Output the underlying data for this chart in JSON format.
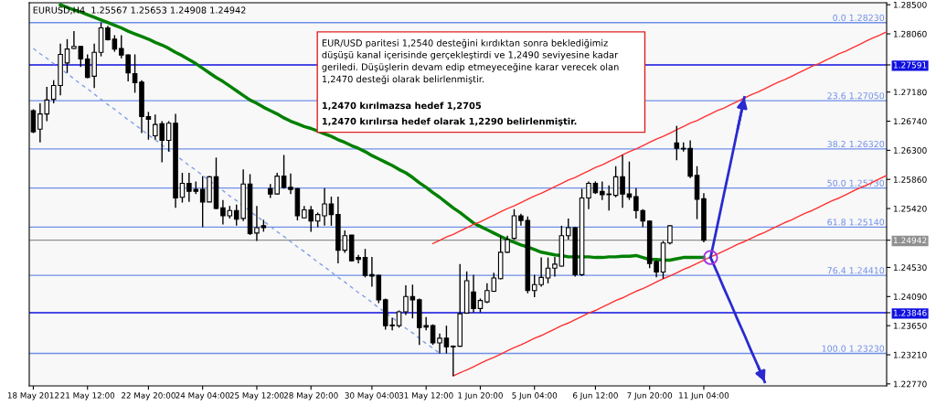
{
  "chart_data": {
    "type": "candlestick",
    "title": "EURUSD,H4  1.25567 1.25653 1.24908 1.24942",
    "annotations": [
      "EUR/USD paritesi 1,2540 desteğini kırdıktan sonra beklediğimiz\ndüşüşü kanal içerisinde gerçekleştirdi ve 1,2490 seviyesine kadar\ngeriledi. Düşüşlerin devam edip etmeyeceğine karar verecek olan\n1,2470 desteği olarak belirlenmiştir.",
      "1,2470 kırılmazsa hedef 1,2705",
      "1,2470 kırılırsa hedef olarak 1,2290 belirlenmiştir."
    ],
    "categories": [
      "18 May 2012",
      null,
      null,
      null,
      null,
      null,
      null,
      null,
      "21 May 12:00",
      null,
      null,
      null,
      null,
      null,
      null,
      null,
      null,
      "22 May 20:00",
      null,
      null,
      null,
      null,
      null,
      null,
      null,
      "24 May 04:00",
      null,
      null,
      null,
      null,
      null,
      null,
      null,
      "25 May 12:00",
      null,
      null,
      null,
      null,
      null,
      null,
      null,
      "28 May 20:00",
      null,
      null,
      null,
      null,
      null,
      null,
      null,
      null,
      "30 May 04:00",
      null,
      null,
      null,
      null,
      null,
      null,
      null,
      "31 May 12:00",
      null,
      null,
      null,
      null,
      null,
      null,
      null,
      "1 Jun 20:00",
      null,
      null,
      null,
      null,
      null,
      null,
      null,
      "5 Jun 04:00",
      null,
      null,
      null,
      null,
      null,
      null,
      null,
      null,
      "6 Jun 12:00",
      null,
      null,
      null,
      null,
      null,
      null,
      null,
      "7 Jun 20:00",
      null,
      null,
      null,
      null,
      null,
      null,
      null,
      "11 Jun 04:00",
      null,
      null,
      null,
      null,
      null,
      null,
      null,
      null,
      null,
      null,
      null,
      null,
      null,
      null,
      null,
      null,
      null,
      null,
      null,
      null,
      null,
      null,
      null,
      null,
      null,
      null,
      null
    ],
    "ohlc": [
      [
        1.269,
        1.2692,
        1.2656,
        1.2658
      ],
      [
        1.2662,
        1.2701,
        1.2642,
        1.2685
      ],
      [
        1.2685,
        1.2726,
        1.2674,
        1.2706
      ],
      [
        1.2707,
        1.2736,
        1.2701,
        1.2728
      ],
      [
        1.2728,
        1.2791,
        1.2713,
        1.2775
      ],
      [
        1.2762,
        1.2798,
        1.2747,
        1.2783
      ],
      [
        1.2784,
        1.281,
        1.2783,
        1.2787
      ],
      [
        1.2787,
        1.2788,
        1.2756,
        1.2768
      ],
      [
        1.2768,
        1.2775,
        1.2739,
        1.274
      ],
      [
        1.2742,
        1.2791,
        1.2724,
        1.2778
      ],
      [
        1.2778,
        1.2823,
        1.2772,
        1.2815
      ],
      [
        1.2815,
        1.2818,
        1.2796,
        1.2797
      ],
      [
        1.2798,
        1.2804,
        1.2779,
        1.2783
      ],
      [
        1.2784,
        1.2804,
        1.2769,
        1.2774
      ],
      [
        1.2774,
        1.2775,
        1.2734,
        1.2747
      ],
      [
        1.2746,
        1.2775,
        1.2717,
        1.2732
      ],
      [
        1.2733,
        1.2736,
        1.2656,
        1.2681
      ],
      [
        1.2681,
        1.2688,
        1.2646,
        1.2677
      ],
      [
        1.2652,
        1.2684,
        1.2646,
        1.2669
      ],
      [
        1.267,
        1.2674,
        1.2612,
        1.2645
      ],
      [
        1.2645,
        1.2674,
        1.2628,
        1.2671
      ],
      [
        1.2671,
        1.2685,
        1.2543,
        1.2558
      ],
      [
        1.2559,
        1.2596,
        1.2551,
        1.258
      ],
      [
        1.258,
        1.2596,
        1.2552,
        1.2568
      ],
      [
        1.2571,
        1.2583,
        1.2564,
        1.2568
      ],
      [
        1.2571,
        1.2591,
        1.2514,
        1.2552
      ],
      [
        1.2552,
        1.2591,
        1.2552,
        1.259
      ],
      [
        1.259,
        1.2619,
        1.2541,
        1.2542
      ],
      [
        1.2543,
        1.2555,
        1.2518,
        1.2531
      ],
      [
        1.2531,
        1.2546,
        1.2527,
        1.2539
      ],
      [
        1.2539,
        1.2548,
        1.2516,
        1.2526
      ],
      [
        1.2527,
        1.2601,
        1.2523,
        1.2579
      ],
      [
        1.2579,
        1.2594,
        1.2502,
        1.2504
      ],
      [
        1.2505,
        1.2546,
        1.2493,
        1.2513
      ],
      [
        1.2516,
        1.2525,
        1.2507,
        1.2513
      ],
      [
        1.2572,
        1.2579,
        1.2558,
        1.2564
      ],
      [
        1.2564,
        1.2596,
        1.2563,
        1.2591
      ],
      [
        1.2591,
        1.2623,
        1.2572,
        1.2574
      ],
      [
        1.2574,
        1.2595,
        1.2564,
        1.2571
      ],
      [
        1.2572,
        1.2573,
        1.2524,
        1.2531
      ],
      [
        1.2528,
        1.2546,
        1.2527,
        1.254
      ],
      [
        1.254,
        1.2546,
        1.2507,
        1.2523
      ],
      [
        1.2523,
        1.2536,
        1.2514,
        1.2533
      ],
      [
        1.2531,
        1.2573,
        1.2516,
        1.2549
      ],
      [
        1.2549,
        1.256,
        1.2516,
        1.2533
      ],
      [
        1.2533,
        1.256,
        1.2459,
        1.2479
      ],
      [
        1.2479,
        1.2509,
        1.2475,
        1.2501
      ],
      [
        1.2502,
        1.2502,
        1.2462,
        1.2463
      ],
      [
        1.2468,
        1.2472,
        1.2459,
        1.2465
      ],
      [
        1.2468,
        1.2481,
        1.2438,
        1.2441
      ],
      [
        1.2442,
        1.2469,
        1.2424,
        1.244
      ],
      [
        1.2441,
        1.2442,
        1.2399,
        1.2404
      ],
      [
        1.2404,
        1.2406,
        1.2359,
        1.2365
      ],
      [
        1.2366,
        1.2377,
        1.2358,
        1.2365
      ],
      [
        1.2365,
        1.2388,
        1.2362,
        1.2386
      ],
      [
        1.2386,
        1.2426,
        1.2381,
        1.2409
      ],
      [
        1.2409,
        1.2427,
        1.2376,
        1.2404
      ],
      [
        1.2404,
        1.2406,
        1.2336,
        1.2362
      ],
      [
        1.2365,
        1.2378,
        1.2358,
        1.2363
      ],
      [
        1.2365,
        1.2367,
        1.2336,
        1.2339
      ],
      [
        1.2339,
        1.2353,
        1.2323,
        1.2346
      ],
      [
        1.2346,
        1.2365,
        1.2323,
        1.2333
      ],
      [
        1.2334,
        1.2335,
        1.2289,
        1.2333
      ],
      [
        1.2334,
        1.2458,
        1.2333,
        1.2383
      ],
      [
        1.2384,
        1.2447,
        1.2383,
        1.2433
      ],
      [
        1.2416,
        1.2442,
        1.2385,
        1.2391
      ],
      [
        1.2391,
        1.2406,
        1.2385,
        1.2403
      ],
      [
        1.2401,
        1.2429,
        1.2399,
        1.2418
      ],
      [
        1.2417,
        1.2445,
        1.2416,
        1.2437
      ],
      [
        1.2436,
        1.25,
        1.2435,
        1.2476
      ],
      [
        1.2476,
        1.2501,
        1.2475,
        1.2495
      ],
      [
        1.2497,
        1.2541,
        1.2495,
        1.2531
      ],
      [
        1.2531,
        1.2534,
        1.2516,
        1.2524
      ],
      [
        1.2524,
        1.253,
        1.2414,
        1.2418
      ],
      [
        1.2418,
        1.2442,
        1.2408,
        1.2427
      ],
      [
        1.2427,
        1.2468,
        1.2424,
        1.2438
      ],
      [
        1.2437,
        1.2468,
        1.2429,
        1.2452
      ],
      [
        1.2452,
        1.2469,
        1.2439,
        1.2458
      ],
      [
        1.2455,
        1.2516,
        1.2454,
        1.2501
      ],
      [
        1.2501,
        1.2527,
        1.2495,
        1.2513
      ],
      [
        1.2513,
        1.2514,
        1.2439,
        1.2442
      ],
      [
        1.2442,
        1.2572,
        1.244,
        1.2558
      ],
      [
        1.2558,
        1.2583,
        1.2541,
        1.258
      ],
      [
        1.258,
        1.2583,
        1.2564,
        1.2566
      ],
      [
        1.2568,
        1.2583,
        1.2555,
        1.2563
      ],
      [
        1.2564,
        1.2577,
        1.2539,
        1.2563
      ],
      [
        1.2562,
        1.2606,
        1.2559,
        1.259
      ],
      [
        1.259,
        1.2623,
        1.2543,
        1.2564
      ],
      [
        1.2564,
        1.2613,
        1.2555,
        1.2559
      ],
      [
        1.256,
        1.2573,
        1.2527,
        1.2539
      ],
      [
        1.2539,
        1.2541,
        1.2514,
        1.2523
      ],
      [
        1.2523,
        1.2524,
        1.2452,
        1.2459
      ],
      [
        1.2462,
        1.2464,
        1.2438,
        1.2446
      ],
      [
        1.2446,
        1.2493,
        1.2436,
        1.249
      ],
      [
        1.249,
        1.2517,
        1.2488,
        1.2516
      ],
      [
        1.2641,
        1.2667,
        1.2615,
        1.2633
      ],
      [
        1.2633,
        1.2642,
        1.2628,
        1.2632
      ],
      [
        1.2633,
        1.2645,
        1.2588,
        1.2591
      ],
      [
        1.2592,
        1.2606,
        1.2526,
        1.2556
      ],
      [
        1.25567,
        1.25653,
        1.24908,
        1.24942
      ],
      null,
      null,
      null,
      null,
      null,
      null,
      null,
      null,
      null,
      null,
      null,
      null,
      null,
      null,
      null,
      null,
      null,
      null,
      null,
      null,
      null,
      null,
      null,
      null,
      null,
      null,
      null
    ],
    "series": [
      {
        "type": "line",
        "color": "#008000",
        "values": [
          null,
          null,
          null,
          null,
          1.285,
          1.2846,
          1.2842,
          1.2839,
          1.2835,
          1.2831,
          1.2827,
          1.2823,
          1.2819,
          1.2815,
          1.281,
          1.2806,
          1.2802,
          1.2798,
          1.2793,
          1.2789,
          1.2784,
          1.2778,
          1.2773,
          1.2767,
          1.2761,
          1.2754,
          1.2747,
          1.274,
          1.2734,
          1.2727,
          1.272,
          1.2713,
          1.2706,
          1.2701,
          1.2695,
          1.269,
          1.2685,
          1.2679,
          1.2674,
          1.267,
          1.2666,
          1.2663,
          1.2659,
          1.2655,
          1.2651,
          1.2646,
          1.2642,
          1.2637,
          1.2633,
          1.2628,
          1.2622,
          1.2617,
          1.2612,
          1.2607,
          1.2601,
          1.2596,
          1.2589,
          1.2581,
          1.2574,
          1.2566,
          1.2559,
          1.2551,
          1.2543,
          1.2536,
          1.2528,
          1.252,
          1.2515,
          1.251,
          1.2505,
          1.25,
          1.2495,
          1.2491,
          1.2487,
          1.2484,
          1.248,
          1.2476,
          1.2474,
          1.2472,
          1.2471,
          1.2469,
          1.2469,
          1.2469,
          1.2469,
          1.2468,
          1.2468,
          1.2469,
          1.2469,
          1.247,
          1.247,
          1.2471,
          1.2468,
          1.2465,
          1.2465,
          1.2464,
          1.2464,
          1.2466,
          1.2468,
          1.2468,
          1.2468,
          1.2468,
          null,
          null,
          null,
          null,
          null,
          null,
          null,
          null,
          null,
          null,
          null,
          null,
          null,
          null,
          null,
          null,
          null,
          null,
          null,
          null,
          null,
          null,
          null,
          null,
          null,
          null,
          null
        ]
      },
      {
        "type": "line",
        "color": "#ff3030",
        "values": [
          null,
          null,
          null,
          null,
          null,
          null,
          null,
          null,
          null,
          null,
          null,
          null,
          null,
          null,
          null,
          null,
          null,
          null,
          null,
          null,
          null,
          null,
          null,
          null,
          null,
          null,
          null,
          null,
          null,
          null,
          null,
          null,
          null,
          null,
          null,
          null,
          null,
          null,
          null,
          null,
          null,
          null,
          null,
          null,
          null,
          null,
          null,
          null,
          null,
          null,
          null,
          null,
          null,
          null,
          null,
          null,
          null,
          null,
          null,
          1.2489,
          1.2494,
          1.2499,
          1.2503,
          1.2508,
          1.2513,
          1.2518,
          1.2522,
          1.2527,
          1.2532,
          1.2537,
          1.2542,
          1.2546,
          1.2551,
          1.2556,
          1.2561,
          1.2565,
          1.257,
          1.2575,
          1.258,
          1.2585,
          1.2589,
          1.2594,
          1.2599,
          1.2604,
          1.2608,
          1.2613,
          1.2618,
          1.2623,
          1.2628,
          1.2632,
          1.2637,
          1.2642,
          1.2647,
          1.2651,
          1.2656,
          1.2661,
          1.2666,
          1.2671,
          1.2675,
          1.268,
          1.2685,
          1.269,
          1.2694,
          1.2699,
          1.2704,
          1.2709,
          1.2714,
          1.2718,
          1.2723,
          1.2728,
          1.2733,
          1.2737,
          1.2742,
          1.2747,
          1.2752,
          1.2757,
          1.2761,
          1.2766,
          1.2771,
          1.2776,
          1.278,
          1.2785,
          1.279,
          1.2795,
          1.28,
          1.2804,
          1.2809
        ]
      },
      {
        "type": "line",
        "color": "#ff3030",
        "values": [
          null,
          null,
          null,
          null,
          null,
          null,
          null,
          null,
          null,
          null,
          null,
          null,
          null,
          null,
          null,
          null,
          null,
          null,
          null,
          null,
          null,
          null,
          null,
          null,
          null,
          null,
          null,
          null,
          null,
          null,
          null,
          null,
          null,
          null,
          null,
          null,
          null,
          null,
          null,
          null,
          null,
          null,
          null,
          null,
          null,
          null,
          null,
          null,
          null,
          null,
          null,
          null,
          null,
          null,
          null,
          null,
          null,
          null,
          null,
          null,
          null,
          null,
          1.2289,
          1.2294,
          1.2298,
          1.2303,
          1.2308,
          1.2313,
          1.2317,
          1.2322,
          1.2327,
          1.2332,
          1.2336,
          1.2341,
          1.2346,
          1.235,
          1.2355,
          1.236,
          1.2365,
          1.2369,
          1.2374,
          1.2379,
          1.2384,
          1.2388,
          1.2393,
          1.2398,
          1.2403,
          1.2407,
          1.2412,
          1.2417,
          1.2421,
          1.2426,
          1.2431,
          1.2436,
          1.244,
          1.2445,
          1.245,
          1.2454,
          1.2459,
          1.2464,
          1.2469,
          1.2473,
          1.2478,
          1.2483,
          1.2488,
          1.2492,
          1.2497,
          1.2502,
          1.2506,
          1.2511,
          1.2516,
          1.2521,
          1.2525,
          1.253,
          1.2535,
          1.2539,
          1.2544,
          1.2549,
          1.2554,
          1.2558,
          1.2563,
          1.2568,
          1.2573,
          1.2577,
          1.2582,
          1.2587,
          1.2592
        ]
      },
      {
        "type": "line",
        "color": "#7f9fe8",
        "line_style": "dashed",
        "values": [
          1.2784,
          1.2776,
          1.2769,
          1.2761,
          1.2753,
          1.2746,
          1.2738,
          1.273,
          1.2723,
          1.2715,
          1.2707,
          1.2699,
          1.2692,
          1.2684,
          1.2676,
          1.2669,
          1.2661,
          1.2653,
          1.2646,
          1.2638,
          1.263,
          1.2623,
          1.2615,
          1.2607,
          1.26,
          1.2592,
          1.2584,
          1.2577,
          1.2569,
          1.2561,
          1.2554,
          1.2546,
          1.2538,
          1.253,
          1.2523,
          1.2515,
          1.2507,
          1.25,
          1.2492,
          1.2484,
          1.2477,
          1.2469,
          1.2461,
          1.2454,
          1.2446,
          1.2438,
          1.2431,
          1.2423,
          1.2415,
          1.2408,
          1.24,
          1.2392,
          1.2385,
          1.2377,
          1.2369,
          1.2361,
          1.2354,
          1.2346,
          1.2338,
          1.2331,
          1.2323,
          null,
          null,
          null,
          null,
          null,
          null,
          null,
          null,
          null,
          null,
          null,
          null,
          null,
          null,
          null,
          null,
          null,
          null,
          null,
          null,
          null,
          null,
          null,
          null,
          null,
          null,
          null,
          null,
          null,
          null,
          null,
          null,
          null,
          null,
          null,
          null,
          null,
          null,
          null,
          null,
          null,
          null,
          null,
          null,
          null,
          null,
          null,
          null,
          null,
          null,
          null,
          null,
          null,
          null,
          null,
          null,
          null,
          null,
          null,
          null,
          null,
          null,
          null,
          null,
          null,
          null
        ]
      },
      {
        "type": "line",
        "color": "#2a2ad0",
        "values": [
          null,
          null,
          null,
          null,
          null,
          null,
          null,
          null,
          null,
          null,
          null,
          null,
          null,
          null,
          null,
          null,
          null,
          null,
          null,
          null,
          null,
          null,
          null,
          null,
          null,
          null,
          null,
          null,
          null,
          null,
          null,
          null,
          null,
          null,
          null,
          null,
          null,
          null,
          null,
          null,
          null,
          null,
          null,
          null,
          null,
          null,
          null,
          null,
          null,
          null,
          null,
          null,
          null,
          null,
          null,
          null,
          null,
          null,
          null,
          null,
          null,
          null,
          null,
          null,
          null,
          null,
          null,
          null,
          null,
          null,
          null,
          null,
          null,
          null,
          null,
          null,
          null,
          null,
          null,
          null,
          null,
          null,
          null,
          null,
          null,
          null,
          null,
          null,
          null,
          null,
          null,
          null,
          null,
          null,
          null,
          null,
          null,
          null,
          null,
          null,
          1.2468,
          1.2516,
          1.2565,
          1.2613,
          1.2662,
          1.271,
          null,
          null,
          null,
          null,
          null,
          null,
          null,
          null,
          null,
          null,
          null,
          null,
          null,
          null,
          null,
          null,
          null,
          null,
          null,
          null,
          null
        ]
      },
      {
        "type": "line",
        "color": "#2a2ad0",
        "values": [
          null,
          null,
          null,
          null,
          null,
          null,
          null,
          null,
          null,
          null,
          null,
          null,
          null,
          null,
          null,
          null,
          null,
          null,
          null,
          null,
          null,
          null,
          null,
          null,
          null,
          null,
          null,
          null,
          null,
          null,
          null,
          null,
          null,
          null,
          null,
          null,
          null,
          null,
          null,
          null,
          null,
          null,
          null,
          null,
          null,
          null,
          null,
          null,
          null,
          null,
          null,
          null,
          null,
          null,
          null,
          null,
          null,
          null,
          null,
          null,
          null,
          null,
          null,
          null,
          null,
          null,
          null,
          null,
          null,
          null,
          null,
          null,
          null,
          null,
          null,
          null,
          null,
          null,
          null,
          null,
          null,
          null,
          null,
          null,
          null,
          null,
          null,
          null,
          null,
          null,
          null,
          null,
          null,
          null,
          null,
          null,
          null,
          null,
          null,
          null,
          1.2468,
          1.2445,
          1.2421,
          1.2398,
          1.2374,
          1.2351,
          1.2327,
          1.2304,
          1.228,
          null,
          null,
          null,
          null,
          null,
          null,
          null,
          null,
          null,
          null,
          null,
          null,
          null,
          null,
          null,
          null,
          null,
          null
        ]
      },
      {
        "type": "scatter",
        "color": "#a030e0",
        "marker": "circle",
        "values": [
          null,
          null,
          null,
          null,
          null,
          null,
          null,
          null,
          null,
          null,
          null,
          null,
          null,
          null,
          null,
          null,
          null,
          null,
          null,
          null,
          null,
          null,
          null,
          null,
          null,
          null,
          null,
          null,
          null,
          null,
          null,
          null,
          null,
          null,
          null,
          null,
          null,
          null,
          null,
          null,
          null,
          null,
          null,
          null,
          null,
          null,
          null,
          null,
          null,
          null,
          null,
          null,
          null,
          null,
          null,
          null,
          null,
          null,
          null,
          null,
          null,
          null,
          null,
          null,
          null,
          null,
          null,
          null,
          null,
          null,
          null,
          null,
          null,
          null,
          null,
          null,
          null,
          null,
          null,
          null,
          null,
          null,
          null,
          null,
          null,
          null,
          null,
          null,
          null,
          null,
          null,
          null,
          null,
          null,
          null,
          null,
          null,
          null,
          null,
          null,
          1.2468,
          null,
          null,
          null,
          null,
          null,
          null,
          null,
          null,
          null,
          null,
          null,
          null,
          null,
          null,
          null,
          null,
          null,
          null,
          null,
          null,
          null,
          null,
          null,
          null,
          null,
          null
        ]
      }
    ],
    "ref_lines": [
      {
        "axis": "y",
        "value": 1.2823,
        "label": "0.0 1.28230",
        "color": "#6f8fe8"
      },
      {
        "axis": "y",
        "value": 1.2705,
        "label": "23.6 1.27050",
        "color": "#6f8fe8"
      },
      {
        "axis": "y",
        "value": 1.2632,
        "label": "38.2 1.26320",
        "color": "#6f8fe8"
      },
      {
        "axis": "y",
        "value": 1.2573,
        "label": "50.0 1.25730",
        "color": "#6f8fe8"
      },
      {
        "axis": "y",
        "value": 1.2514,
        "label": "61.8 1.25140",
        "color": "#6f8fe8"
      },
      {
        "axis": "y",
        "value": 1.2441,
        "label": "76.4 1.24410",
        "color": "#6f8fe8"
      },
      {
        "axis": "y",
        "value": 1.2323,
        "label": "100.0 1.23230",
        "color": "#6f8fe8"
      },
      {
        "axis": "y",
        "value": 1.27591,
        "color": "#1010e0"
      },
      {
        "axis": "y",
        "value": 1.23846,
        "color": "#1010e0"
      },
      {
        "axis": "y",
        "value": 1.24942,
        "color": "#909090"
      }
    ],
    "ylim": [
      1.2274,
      1.2853
    ],
    "yticks": [
      {
        "value": 1.285,
        "label": "1.28500"
      },
      {
        "value": 1.2806,
        "label": "1.28060"
      },
      1.27591,
      {
        "value": 1.2718,
        "label": "1.27180"
      },
      {
        "value": 1.2674,
        "label": "1.26740"
      },
      {
        "value": 1.263,
        "label": "1.26300"
      },
      {
        "value": 1.2586,
        "label": "1.25860"
      },
      {
        "value": 1.2542,
        "label": "1.25420"
      },
      1.24942,
      {
        "value": 1.2453,
        "label": "1.24530"
      },
      {
        "value": 1.2409,
        "label": "1.24090"
      },
      1.23846,
      {
        "value": 1.2365,
        "label": "1.23650"
      },
      {
        "value": 1.2321,
        "label": "1.23210"
      },
      {
        "value": 1.2277,
        "label": "1.22770"
      }
    ]
  }
}
